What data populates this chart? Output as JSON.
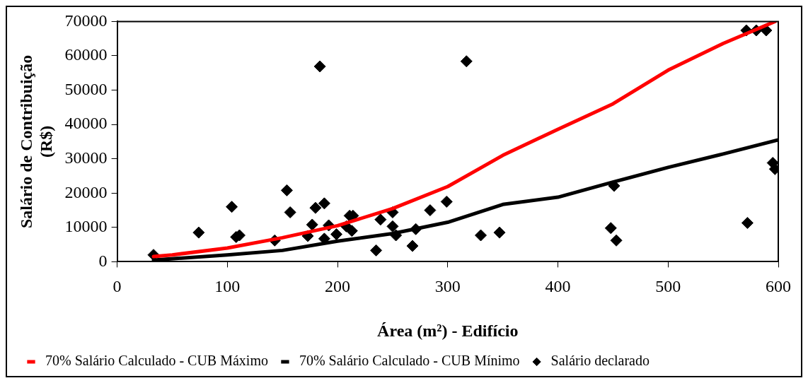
{
  "chart_data": {
    "type": "scatter",
    "xlabel": "Área (m²) - Edifício",
    "ylabel": "Salário de Contribuição (R$)",
    "xlim": [
      0,
      600
    ],
    "xticks": [
      0,
      100,
      200,
      300,
      400,
      500,
      600
    ],
    "ylim": [
      0,
      70000
    ],
    "yticks": [
      0,
      10000,
      20000,
      30000,
      40000,
      50000,
      60000,
      70000
    ],
    "grid": false,
    "legend": "bottom",
    "series": [
      {
        "name": "70% Salário Calculado - CUB Máximo",
        "type": "line",
        "color": "#ff0000",
        "marker": "none",
        "line_style": "solid",
        "x": [
          33,
          50,
          100,
          150,
          200,
          250,
          300,
          350,
          400,
          450,
          500,
          550,
          575,
          597
        ],
        "values": [
          1500,
          2000,
          4000,
          7000,
          10500,
          15500,
          21900,
          31000,
          38600,
          46000,
          55800,
          63600,
          67000,
          70000
        ]
      },
      {
        "name": "70% Salário Calculado - CUB Mínimo",
        "type": "line",
        "color": "#000000",
        "marker": "none",
        "line_style": "solid",
        "x": [
          33,
          100,
          150,
          200,
          250,
          300,
          350,
          400,
          450,
          500,
          550,
          600
        ],
        "values": [
          500,
          2000,
          3300,
          6000,
          8200,
          11500,
          16700,
          18800,
          23200,
          27500,
          31400,
          35500
        ]
      },
      {
        "name": "Salário declarado",
        "type": "scatter",
        "color": "#000000",
        "marker": "diamond",
        "x": [
          33,
          74,
          104,
          108,
          111,
          143,
          154,
          157,
          184,
          180,
          188,
          177,
          173,
          188,
          192,
          199,
          211,
          214,
          208,
          213,
          239,
          235,
          250,
          250,
          253,
          271,
          268,
          284,
          299,
          317,
          330,
          347,
          451,
          448,
          453,
          572,
          571,
          580,
          589,
          595,
          597
        ],
        "values": [
          2000,
          8500,
          16000,
          7200,
          7700,
          6200,
          20800,
          14400,
          56900,
          15700,
          17000,
          10800,
          7500,
          6700,
          10600,
          8000,
          13400,
          13400,
          10300,
          9000,
          12300,
          3300,
          14400,
          10300,
          7700,
          9500,
          4600,
          15000,
          17500,
          58400,
          7700,
          8500,
          22100,
          9800,
          6200,
          11300,
          67400,
          67400,
          67400,
          28800,
          27000
        ]
      }
    ]
  }
}
